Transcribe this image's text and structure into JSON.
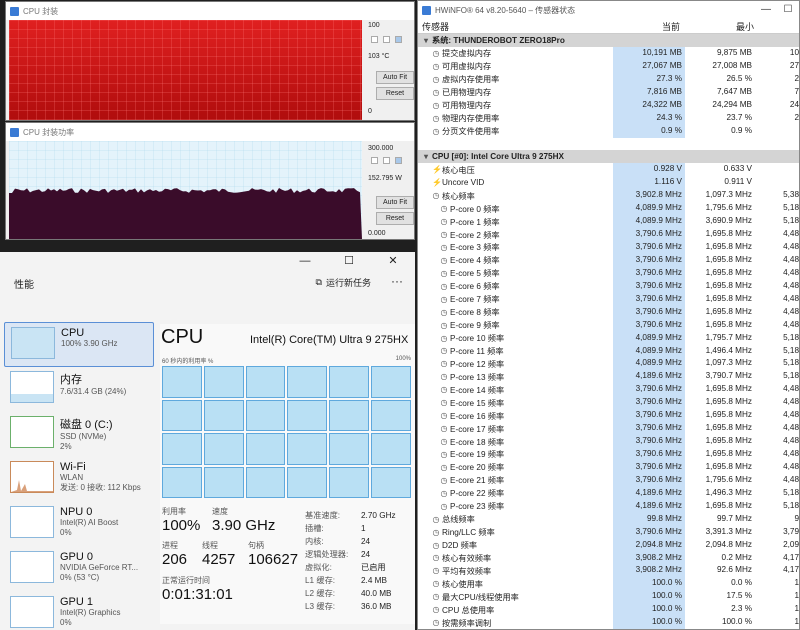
{
  "graph1": {
    "title": "CPU 封装",
    "scale_max": "100",
    "current": "103 °C",
    "scale_min": "0",
    "autofit": "Auto Fit",
    "reset": "Reset",
    "fill_color": "#d81a1a"
  },
  "graph2": {
    "title": "CPU 封装功率",
    "scale_max": "300.000",
    "current": "152.795 W",
    "scale_min": "0.000",
    "autofit": "Auto Fit",
    "reset": "Reset",
    "fill_color": "#3a0c2a"
  },
  "taskmgr": {
    "section": "性能",
    "run_task": "运行新任务",
    "more": "···",
    "sidebar": [
      {
        "title": "CPU",
        "sub1": "100%  3.90 GHz",
        "sub2": ""
      },
      {
        "title": "内存",
        "sub1": "7.6/31.4 GB (24%)",
        "sub2": ""
      },
      {
        "title": "磁盘 0 (C:)",
        "sub1": "SSD (NVMe)",
        "sub2": "2%"
      },
      {
        "title": "Wi-Fi",
        "sub1": "WLAN",
        "sub2": "发送: 0  接收: 112 Kbps"
      },
      {
        "title": "NPU 0",
        "sub1": "Intel(R) AI Boost",
        "sub2": "0%"
      },
      {
        "title": "GPU 0",
        "sub1": "NVIDIA GeForce RT...",
        "sub2": "0% (53 °C)"
      },
      {
        "title": "GPU 1",
        "sub1": "Intel(R) Graphics",
        "sub2": "0%"
      }
    ],
    "main": {
      "title": "CPU",
      "model": "Intel(R) Core(TM) Ultra 9 275HX",
      "graph_label": "60 秒内的利用率 %",
      "graph_max": "100%",
      "util_label": "利用率",
      "util_value": "100%",
      "speed_label": "速度",
      "speed_value": "3.90 GHz",
      "proc_label": "进程",
      "proc_value": "206",
      "thread_label": "线程",
      "thread_value": "4257",
      "handle_label": "句柄",
      "handle_value": "106627",
      "uptime_label": "正常运行时间",
      "uptime_value": "0:01:31:01",
      "specs": [
        {
          "k": "基准速度:",
          "v": "2.70 GHz"
        },
        {
          "k": "插槽:",
          "v": "1"
        },
        {
          "k": "内核:",
          "v": "24"
        },
        {
          "k": "逻辑处理器:",
          "v": "24"
        },
        {
          "k": "虚拟化:",
          "v": "已启用"
        },
        {
          "k": "L1 缓存:",
          "v": "2.4 MB"
        },
        {
          "k": "L2 缓存:",
          "v": "40.0 MB"
        },
        {
          "k": "L3 缓存:",
          "v": "36.0 MB"
        }
      ]
    }
  },
  "hwinfo": {
    "title": "HWiNFO® 64 v8.20-5640 – 传感器状态",
    "col_sensor": "传感器",
    "col_current": "当前",
    "col_min": "最小",
    "rows": [
      {
        "type": "grp",
        "n": "系统: THUNDEROBOT ZERO18Pro"
      },
      {
        "n": "提交虚拟内存",
        "v": "10,191 MB",
        "m": "9,875 MB",
        "x": "10"
      },
      {
        "n": "可用虚拟内存",
        "v": "27,067 MB",
        "m": "27,008 MB",
        "x": "27"
      },
      {
        "n": "虚拟内存使用率",
        "v": "27.3 %",
        "m": "26.5 %",
        "x": "2"
      },
      {
        "n": "已用物理内存",
        "v": "7,816 MB",
        "m": "7,647 MB",
        "x": "7"
      },
      {
        "n": "可用物理内存",
        "v": "24,322 MB",
        "m": "24,294 MB",
        "x": "24"
      },
      {
        "n": "物理内存使用率",
        "v": "24.3 %",
        "m": "23.7 %",
        "x": "2"
      },
      {
        "n": "分页文件使用率",
        "v": "0.9 %",
        "m": "0.9 %",
        "x": ""
      },
      {
        "type": "blank"
      },
      {
        "type": "grp",
        "n": "CPU [#0]: Intel Core Ultra 9 275HX"
      },
      {
        "n": "核心电压",
        "v": "0.928 V",
        "m": "0.633 V",
        "x": "",
        "icon": "bolt"
      },
      {
        "n": "Uncore VID",
        "v": "1.116 V",
        "m": "0.911 V",
        "x": "",
        "icon": "bolt"
      },
      {
        "n": "核心频率",
        "v": "3,902.8 MHz",
        "m": "1,097.3 MHz",
        "x": "5,38"
      },
      {
        "n": "P-core 0 频率",
        "v": "4,089.9 MHz",
        "m": "1,795.6 MHz",
        "x": "5,18",
        "sub": true
      },
      {
        "n": "P-core 1 频率",
        "v": "4,089.9 MHz",
        "m": "3,690.9 MHz",
        "x": "5,18",
        "sub": true
      },
      {
        "n": "E-core 2 频率",
        "v": "3,790.6 MHz",
        "m": "1,695.8 MHz",
        "x": "4,48",
        "sub": true
      },
      {
        "n": "E-core 3 频率",
        "v": "3,790.6 MHz",
        "m": "1,695.8 MHz",
        "x": "4,48",
        "sub": true
      },
      {
        "n": "E-core 4 频率",
        "v": "3,790.6 MHz",
        "m": "1,695.8 MHz",
        "x": "4,48",
        "sub": true
      },
      {
        "n": "E-core 5 频率",
        "v": "3,790.6 MHz",
        "m": "1,695.8 MHz",
        "x": "4,48",
        "sub": true
      },
      {
        "n": "E-core 6 频率",
        "v": "3,790.6 MHz",
        "m": "1,695.8 MHz",
        "x": "4,48",
        "sub": true
      },
      {
        "n": "E-core 7 频率",
        "v": "3,790.6 MHz",
        "m": "1,695.8 MHz",
        "x": "4,48",
        "sub": true
      },
      {
        "n": "E-core 8 频率",
        "v": "3,790.6 MHz",
        "m": "1,695.8 MHz",
        "x": "4,48",
        "sub": true
      },
      {
        "n": "E-core 9 频率",
        "v": "3,790.6 MHz",
        "m": "1,695.8 MHz",
        "x": "4,48",
        "sub": true
      },
      {
        "n": "P-core 10 频率",
        "v": "4,089.9 MHz",
        "m": "1,795.7 MHz",
        "x": "5,18",
        "sub": true
      },
      {
        "n": "P-core 11 频率",
        "v": "4,089.9 MHz",
        "m": "1,496.4 MHz",
        "x": "5,18",
        "sub": true
      },
      {
        "n": "P-core 12 频率",
        "v": "4,089.9 MHz",
        "m": "1,097.3 MHz",
        "x": "5,18",
        "sub": true
      },
      {
        "n": "P-core 13 频率",
        "v": "4,189.6 MHz",
        "m": "3,790.7 MHz",
        "x": "5,18",
        "sub": true
      },
      {
        "n": "E-core 14 频率",
        "v": "3,790.6 MHz",
        "m": "1,695.8 MHz",
        "x": "4,48",
        "sub": true
      },
      {
        "n": "E-core 15 频率",
        "v": "3,790.6 MHz",
        "m": "1,695.8 MHz",
        "x": "4,48",
        "sub": true
      },
      {
        "n": "E-core 16 频率",
        "v": "3,790.6 MHz",
        "m": "1,695.8 MHz",
        "x": "4,48",
        "sub": true
      },
      {
        "n": "E-core 17 频率",
        "v": "3,790.6 MHz",
        "m": "1,695.8 MHz",
        "x": "4,48",
        "sub": true
      },
      {
        "n": "E-core 18 频率",
        "v": "3,790.6 MHz",
        "m": "1,695.8 MHz",
        "x": "4,48",
        "sub": true
      },
      {
        "n": "E-core 19 频率",
        "v": "3,790.6 MHz",
        "m": "1,695.8 MHz",
        "x": "4,48",
        "sub": true
      },
      {
        "n": "E-core 20 频率",
        "v": "3,790.6 MHz",
        "m": "1,695.8 MHz",
        "x": "4,48",
        "sub": true
      },
      {
        "n": "E-core 21 频率",
        "v": "3,790.6 MHz",
        "m": "1,795.6 MHz",
        "x": "4,48",
        "sub": true
      },
      {
        "n": "P-core 22 频率",
        "v": "4,189.6 MHz",
        "m": "1,496.3 MHz",
        "x": "5,18",
        "sub": true
      },
      {
        "n": "P-core 23 频率",
        "v": "4,189.6 MHz",
        "m": "1,695.8 MHz",
        "x": "5,18",
        "sub": true
      },
      {
        "n": "总线频率",
        "v": "99.8 MHz",
        "m": "99.7 MHz",
        "x": "9"
      },
      {
        "n": "Ring/LLC 频率",
        "v": "3,790.6 MHz",
        "m": "3,391.3 MHz",
        "x": "3,79"
      },
      {
        "n": "D2D 频率",
        "v": "2,094.8 MHz",
        "m": "2,094.8 MHz",
        "x": "2,09"
      },
      {
        "n": "核心有效频率",
        "v": "3,908.2 MHz",
        "m": "0.2 MHz",
        "x": "4,17"
      },
      {
        "n": "平均有效频率",
        "v": "3,908.2 MHz",
        "m": "92.6 MHz",
        "x": "4,17"
      },
      {
        "n": "核心使用率",
        "v": "100.0 %",
        "m": "0.0 %",
        "x": "1"
      },
      {
        "n": "最大CPU/线程使用率",
        "v": "100.0 %",
        "m": "17.5 %",
        "x": "1"
      },
      {
        "n": "CPU 总使用率",
        "v": "100.0 %",
        "m": "2.3 %",
        "x": "1"
      },
      {
        "n": "按需频率调制",
        "v": "100.0 %",
        "m": "100.0 %",
        "x": "1"
      }
    ]
  }
}
